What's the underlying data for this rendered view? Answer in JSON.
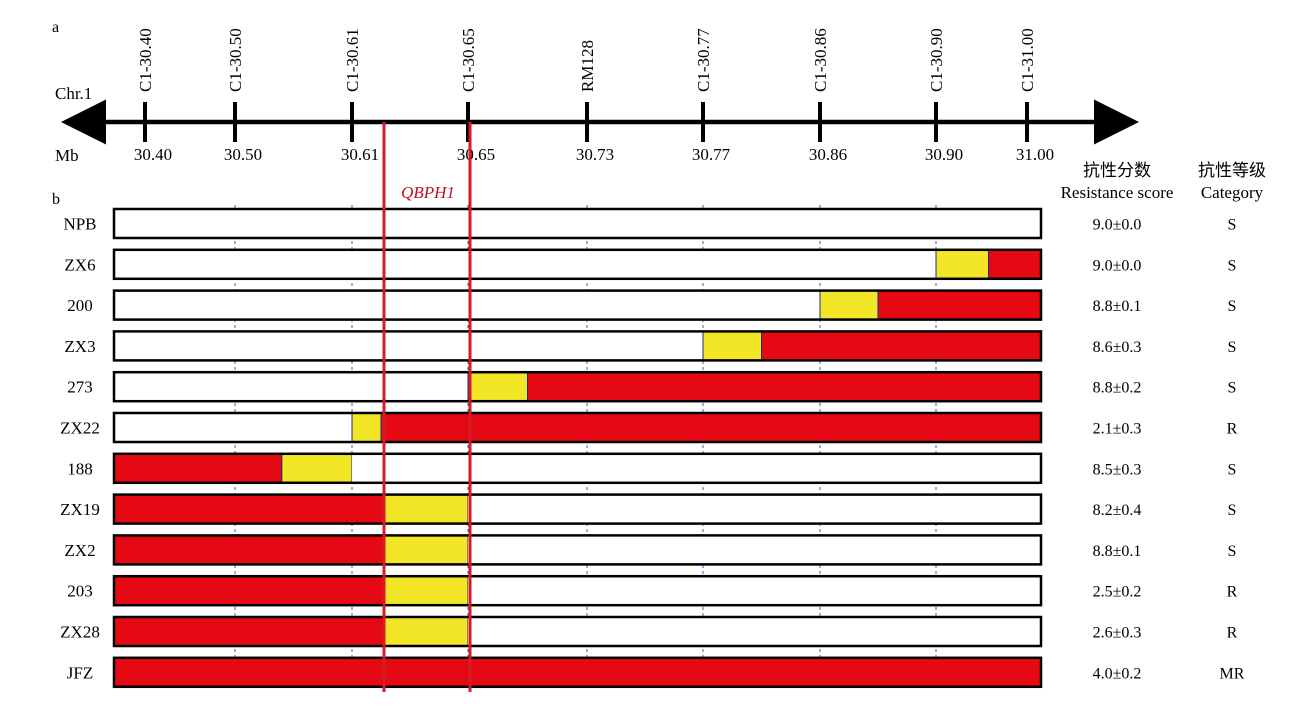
{
  "panel_a_label": "a",
  "panel_b_label": "b",
  "chromosome_label": "Chr.1",
  "unit_label": "Mb",
  "markers": [
    {
      "name": "C1-30.40",
      "position": "30.40"
    },
    {
      "name": "C1-30.50",
      "position": "30.50"
    },
    {
      "name": "C1-30.61",
      "position": "30.61"
    },
    {
      "name": "C1-30.65",
      "position": "30.65"
    },
    {
      "name": "RM128",
      "position": "30.73"
    },
    {
      "name": "C1-30.77",
      "position": "30.77"
    },
    {
      "name": "C1-30.86",
      "position": "30.86"
    },
    {
      "name": "C1-30.90",
      "position": "30.90"
    },
    {
      "name": "C1-31.00",
      "position": "31.00"
    }
  ],
  "qtl_label": "QBPH1",
  "qtl_interval": {
    "from_marker": "C1-30.61",
    "to_marker": "C1-30.65"
  },
  "score_header": {
    "cn": "抗性分数",
    "en": "Resistance score"
  },
  "category_header": {
    "cn": "抗性等级",
    "en": "Category"
  },
  "genotype_colors": {
    "white": "#ffffff",
    "yellow": "#f2e626",
    "red": "#e50914"
  },
  "lines": [
    {
      "name": "NPB",
      "score": "9.0±0.0",
      "category": "S",
      "segments": [
        {
          "from": 0,
          "to": 9,
          "genotype": "white"
        }
      ]
    },
    {
      "name": "ZX6",
      "score": "9.0±0.0",
      "category": "S",
      "segments": [
        {
          "from": 0,
          "to": 7,
          "genotype": "white"
        },
        {
          "from": 7,
          "to": 7.5,
          "genotype": "yellow"
        },
        {
          "from": 7.5,
          "to": 9,
          "genotype": "red"
        }
      ]
    },
    {
      "name": "200",
      "score": "8.8±0.1",
      "category": "S",
      "segments": [
        {
          "from": 0,
          "to": 6,
          "genotype": "white"
        },
        {
          "from": 6,
          "to": 6.5,
          "genotype": "yellow"
        },
        {
          "from": 6.5,
          "to": 9,
          "genotype": "red"
        }
      ]
    },
    {
      "name": "ZX3",
      "score": "8.6±0.3",
      "category": "S",
      "segments": [
        {
          "from": 0,
          "to": 5,
          "genotype": "white"
        },
        {
          "from": 5,
          "to": 5.5,
          "genotype": "yellow"
        },
        {
          "from": 5.5,
          "to": 9,
          "genotype": "red"
        }
      ]
    },
    {
      "name": "273",
      "score": "8.8±0.2",
      "category": "S",
      "segments": [
        {
          "from": 0,
          "to": 3,
          "genotype": "white"
        },
        {
          "from": 3,
          "to": 3.5,
          "genotype": "yellow"
        },
        {
          "from": 3.5,
          "to": 9,
          "genotype": "red"
        }
      ]
    },
    {
      "name": "ZX22",
      "score": "2.1±0.3",
      "category": "R",
      "segments": [
        {
          "from": 0,
          "to": 2,
          "genotype": "white"
        },
        {
          "from": 2,
          "to": 2.25,
          "genotype": "yellow"
        },
        {
          "from": 2.25,
          "to": 9,
          "genotype": "red"
        }
      ]
    },
    {
      "name": "188",
      "score": "8.5±0.3",
      "category": "S",
      "segments": [
        {
          "from": 0,
          "to": 1.4,
          "genotype": "red"
        },
        {
          "from": 1.4,
          "to": 2,
          "genotype": "yellow"
        },
        {
          "from": 2,
          "to": 9,
          "genotype": "white"
        }
      ]
    },
    {
      "name": "ZX19",
      "score": "8.2±0.4",
      "category": "S",
      "segments": [
        {
          "from": 0,
          "to": 2.28,
          "genotype": "red"
        },
        {
          "from": 2.28,
          "to": 3,
          "genotype": "yellow"
        },
        {
          "from": 3,
          "to": 9,
          "genotype": "white"
        }
      ]
    },
    {
      "name": "ZX2",
      "score": "8.8±0.1",
      "category": "S",
      "segments": [
        {
          "from": 0,
          "to": 2.28,
          "genotype": "red"
        },
        {
          "from": 2.28,
          "to": 3,
          "genotype": "yellow"
        },
        {
          "from": 3,
          "to": 9,
          "genotype": "white"
        }
      ]
    },
    {
      "name": "203",
      "score": "2.5±0.2",
      "category": "R",
      "segments": [
        {
          "from": 0,
          "to": 2.28,
          "genotype": "red"
        },
        {
          "from": 2.28,
          "to": 3,
          "genotype": "yellow"
        },
        {
          "from": 3,
          "to": 9,
          "genotype": "white"
        }
      ]
    },
    {
      "name": "ZX28",
      "score": "2.6±0.3",
      "category": "R",
      "segments": [
        {
          "from": 0,
          "to": 2.28,
          "genotype": "red"
        },
        {
          "from": 2.28,
          "to": 3,
          "genotype": "yellow"
        },
        {
          "from": 3,
          "to": 9,
          "genotype": "white"
        }
      ]
    },
    {
      "name": "JFZ",
      "score": "4.0±0.2",
      "category": "MR",
      "segments": [
        {
          "from": 0,
          "to": 9,
          "genotype": "red"
        }
      ]
    }
  ]
}
